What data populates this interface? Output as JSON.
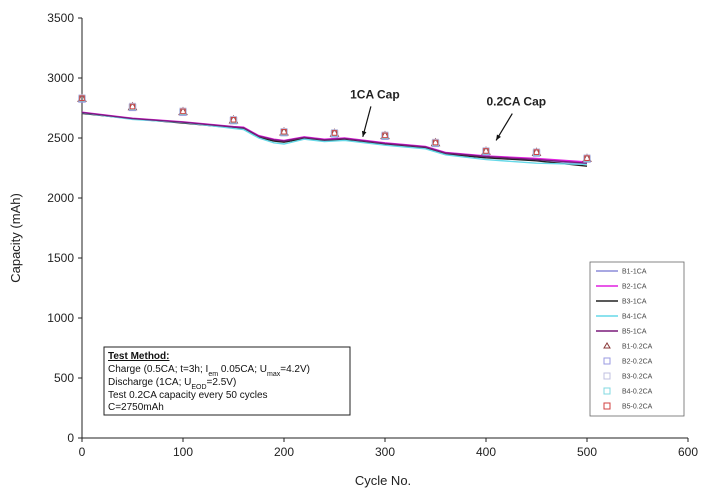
{
  "chart_data": {
    "type": "line",
    "xlabel": "Cycle No.",
    "ylabel": "Capacity (mAh)",
    "xlim": [
      0,
      600
    ],
    "ylim": [
      0,
      3500
    ],
    "xticks": [
      "0",
      "100",
      "200",
      "300",
      "400",
      "500",
      "600"
    ],
    "yticks": [
      "0",
      "500",
      "1000",
      "1500",
      "2000",
      "2500",
      "3000",
      "3500"
    ],
    "grid": false,
    "legend_placement": "bottom-right",
    "series": [
      {
        "name": "B1-1CA",
        "kind": "line",
        "color": "#8c8cd9",
        "x": [
          0,
          50,
          100,
          150,
          160,
          175,
          190,
          200,
          220,
          240,
          260,
          300,
          340,
          360,
          400,
          450,
          500
        ],
        "y": [
          2710,
          2660,
          2630,
          2590,
          2580,
          2510,
          2480,
          2470,
          2500,
          2480,
          2490,
          2450,
          2420,
          2370,
          2340,
          2320,
          2280
        ]
      },
      {
        "name": "B2-1CA",
        "kind": "line",
        "color": "#e020e0",
        "x": [
          0,
          50,
          100,
          150,
          160,
          175,
          190,
          200,
          220,
          240,
          260,
          300,
          340,
          360,
          400,
          450,
          500
        ],
        "y": [
          2715,
          2665,
          2635,
          2595,
          2590,
          2520,
          2490,
          2480,
          2510,
          2490,
          2500,
          2460,
          2430,
          2380,
          2350,
          2330,
          2300
        ]
      },
      {
        "name": "B3-1CA",
        "kind": "line",
        "color": "#222222",
        "x": [
          0,
          50,
          100,
          150,
          160,
          175,
          190,
          200,
          220,
          240,
          260,
          300,
          340,
          360,
          400,
          450,
          500
        ],
        "y": [
          2705,
          2660,
          2625,
          2585,
          2575,
          2505,
          2475,
          2465,
          2495,
          2475,
          2485,
          2445,
          2415,
          2365,
          2335,
          2310,
          2265
        ]
      },
      {
        "name": "B4-1CA",
        "kind": "line",
        "color": "#66d9e8",
        "x": [
          0,
          50,
          100,
          150,
          160,
          175,
          190,
          200,
          220,
          240,
          260,
          300,
          340,
          360,
          400,
          450,
          500
        ],
        "y": [
          2710,
          2655,
          2630,
          2580,
          2570,
          2500,
          2460,
          2450,
          2490,
          2470,
          2480,
          2440,
          2410,
          2360,
          2320,
          2290,
          2280
        ]
      },
      {
        "name": "B5-1CA",
        "kind": "line",
        "color": "#7a1a7a",
        "x": [
          0,
          50,
          100,
          150,
          160,
          175,
          190,
          200,
          220,
          240,
          260,
          300,
          340,
          360,
          400,
          450,
          500
        ],
        "y": [
          2712,
          2662,
          2632,
          2592,
          2585,
          2515,
          2485,
          2475,
          2505,
          2485,
          2495,
          2455,
          2425,
          2375,
          2345,
          2320,
          2290
        ]
      },
      {
        "name": "B1-0.2CA",
        "kind": "marker",
        "marker": "triangle",
        "color": "#8a3a3a",
        "x": [
          0,
          50,
          100,
          150,
          200,
          250,
          300,
          350,
          400,
          450,
          500
        ],
        "y": [
          2830,
          2760,
          2720,
          2650,
          2550,
          2540,
          2520,
          2460,
          2390,
          2380,
          2330
        ]
      },
      {
        "name": "B2-0.2CA",
        "kind": "marker",
        "marker": "square",
        "color": "#9a9ae0",
        "x": [
          0,
          50,
          100,
          150,
          200,
          250,
          300,
          350,
          400,
          450,
          500
        ],
        "y": [
          2825,
          2755,
          2715,
          2645,
          2545,
          2535,
          2515,
          2455,
          2385,
          2375,
          2325
        ]
      },
      {
        "name": "B3-0.2CA",
        "kind": "marker",
        "marker": "square",
        "color": "#c0c0e0",
        "x": [
          0,
          50,
          100,
          150,
          200,
          250,
          300,
          350,
          400,
          450,
          500
        ],
        "y": [
          2835,
          2765,
          2725,
          2655,
          2555,
          2545,
          2525,
          2465,
          2395,
          2385,
          2335
        ]
      },
      {
        "name": "B4-0.2CA",
        "kind": "marker",
        "marker": "square",
        "color": "#80d8e0",
        "x": [
          0,
          50,
          100,
          150,
          200,
          250,
          300,
          350,
          400,
          450,
          500
        ],
        "y": [
          2830,
          2758,
          2718,
          2648,
          2548,
          2538,
          2518,
          2458,
          2388,
          2378,
          2328
        ]
      },
      {
        "name": "B5-0.2CA",
        "kind": "marker",
        "marker": "square",
        "color": "#d04040",
        "x": [
          0,
          50,
          100,
          150,
          200,
          250,
          300,
          350,
          400,
          450,
          500
        ],
        "y": [
          2832,
          2762,
          2722,
          2652,
          2552,
          2542,
          2522,
          2462,
          2392,
          2382,
          2332
        ]
      }
    ],
    "annotations": [
      {
        "text": "1CA Cap",
        "x": 290,
        "y": 2830,
        "arrow_to": [
          278,
          2510
        ]
      },
      {
        "text": "0.2CA Cap",
        "x": 430,
        "y": 2770,
        "arrow_to": [
          410,
          2480
        ]
      }
    ],
    "note_box": {
      "title": "Test Method:",
      "lines": [
        "Charge (0.5CA; t=3h; I<sub>em</sub> 0.05CA; U<sub>max</sub>=4.2V)",
        "Discharge (1CA; U<sub>EOD</sub>=2.5V)",
        "Test 0.2CA capacity every 50 cycles",
        "C=2750mAh"
      ]
    }
  }
}
